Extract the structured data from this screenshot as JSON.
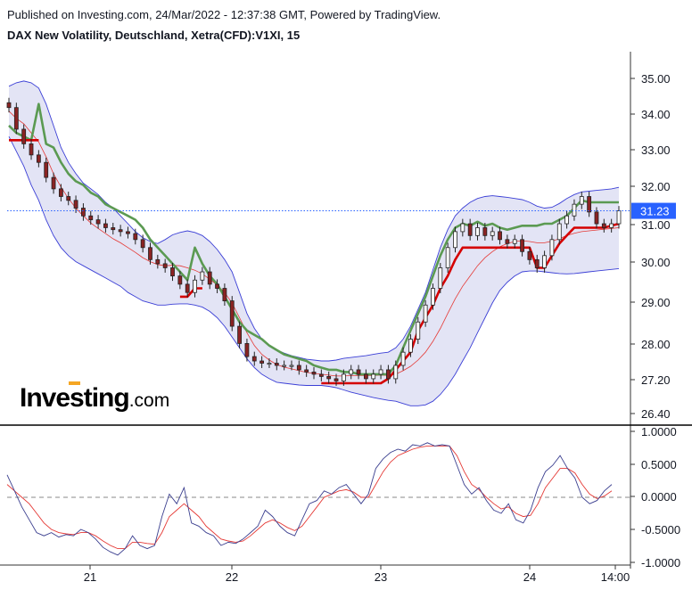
{
  "header": {
    "published": "Published on Investing.com, 24/Mar/2022 - 12:37:38 GMT, Powered by TradingView.",
    "symbol": "DAX New Volatility, Deutschland, Xetra(CFD):V1XI, 15"
  },
  "brand": {
    "name": "Investing",
    "suffix": ".com"
  },
  "colors": {
    "candle_up": "#ffffff",
    "candle_down": "#8b2323",
    "candle_outline": "#222222",
    "band_fill": "#e3e4f5",
    "band_line": "#3b3fd6",
    "basis_line": "#e53935",
    "green_line": "#5b9a52",
    "red_line": "#d50000",
    "price_line": "#2962ff",
    "osc_main": "#3b3f8f",
    "osc_signal": "#e53935"
  },
  "chart_data": [
    {
      "type": "candlestick",
      "title": "DAX New Volatility, Deutschland, Xetra(CFD):V1XI, 15",
      "y_scale": "log",
      "ylim": [
        26.2,
        35.6
      ],
      "y_ticks": [
        "35.00",
        "34.00",
        "33.00",
        "32.00",
        "31.00",
        "30.00",
        "29.00",
        "28.00",
        "27.20",
        "26.40"
      ],
      "x_ticks": [
        "21",
        "22",
        "23",
        "24",
        "14:00"
      ],
      "last_price": "31.23",
      "close": [
        34.0,
        33.4,
        33.0,
        32.7,
        32.5,
        32.1,
        31.8,
        31.6,
        31.5,
        31.3,
        31.1,
        31.0,
        30.9,
        30.8,
        30.75,
        30.7,
        30.65,
        30.5,
        30.3,
        30.0,
        29.9,
        29.8,
        29.6,
        29.4,
        29.2,
        29.5,
        29.7,
        29.4,
        29.3,
        29.0,
        28.4,
        28.0,
        27.7,
        27.6,
        27.55,
        27.55,
        27.5,
        27.5,
        27.5,
        27.4,
        27.35,
        27.3,
        27.25,
        27.2,
        27.15,
        27.3,
        27.4,
        27.3,
        27.2,
        27.3,
        27.4,
        27.2,
        27.5,
        27.8,
        28.1,
        28.5,
        28.9,
        29.3,
        29.8,
        30.3,
        30.7,
        30.9,
        30.6,
        30.8,
        30.6,
        30.7,
        30.5,
        30.4,
        30.5,
        30.2,
        30.0,
        29.8,
        30.1,
        30.5,
        30.9,
        31.1,
        31.4,
        31.6,
        31.2,
        30.9,
        30.8,
        30.9,
        31.23
      ],
      "series": [
        {
          "name": "",
          "role": "bollinger_upper",
          "values": [
            34.6,
            34.7,
            34.75,
            34.7,
            34.55,
            34.1,
            33.5,
            32.9,
            32.5,
            32.2,
            31.95,
            31.8,
            31.65,
            31.45,
            31.3,
            31.1,
            30.9,
            30.7,
            30.55,
            30.45,
            30.4,
            30.5,
            30.62,
            30.68,
            30.72,
            30.68,
            30.6,
            30.45,
            30.25,
            30.0,
            29.7,
            29.2,
            28.7,
            28.35,
            28.1,
            27.95,
            27.85,
            27.78,
            27.72,
            27.68,
            27.64,
            27.62,
            27.6,
            27.6,
            27.62,
            27.66,
            27.68,
            27.7,
            27.72,
            27.75,
            27.78,
            27.8,
            27.9,
            28.1,
            28.4,
            28.8,
            29.2,
            29.75,
            30.3,
            30.75,
            31.1,
            31.3,
            31.45,
            31.55,
            31.6,
            31.62,
            31.6,
            31.58,
            31.55,
            31.52,
            31.45,
            31.35,
            31.3,
            31.32,
            31.42,
            31.55,
            31.65,
            31.72,
            31.74,
            31.76,
            31.78,
            31.8,
            31.84
          ]
        },
        {
          "name": "",
          "role": "bollinger_lower",
          "values": [
            33.2,
            32.8,
            32.4,
            31.9,
            31.5,
            31.0,
            30.6,
            30.3,
            30.1,
            29.95,
            29.85,
            29.75,
            29.65,
            29.55,
            29.45,
            29.35,
            29.2,
            29.1,
            29.0,
            28.95,
            28.9,
            28.9,
            28.92,
            28.93,
            28.93,
            28.9,
            28.85,
            28.75,
            28.6,
            28.4,
            28.15,
            27.9,
            27.65,
            27.45,
            27.3,
            27.2,
            27.12,
            27.1,
            27.08,
            27.06,
            27.05,
            27.05,
            27.05,
            27.03,
            27.0,
            26.95,
            26.9,
            26.86,
            26.82,
            26.78,
            26.75,
            26.72,
            26.7,
            26.65,
            26.6,
            26.6,
            26.62,
            26.7,
            26.85,
            27.05,
            27.3,
            27.6,
            27.9,
            28.25,
            28.6,
            28.95,
            29.25,
            29.45,
            29.6,
            29.7,
            29.72,
            29.72,
            29.7,
            29.68,
            29.66,
            29.65,
            29.66,
            29.68,
            29.7,
            29.72,
            29.74,
            29.76,
            29.78
          ]
        },
        {
          "name": "",
          "role": "bollinger_basis",
          "values": [
            33.9,
            33.7,
            33.55,
            33.3,
            33.05,
            32.65,
            32.2,
            31.85,
            31.55,
            31.3,
            31.1,
            30.92,
            30.78,
            30.65,
            30.52,
            30.42,
            30.3,
            30.18,
            30.05,
            29.95,
            29.88,
            29.85,
            29.86,
            29.85,
            29.8,
            29.74,
            29.65,
            29.52,
            29.38,
            29.2,
            28.95,
            28.6,
            28.25,
            27.95,
            27.75,
            27.62,
            27.52,
            27.46,
            27.42,
            27.38,
            27.34,
            27.32,
            27.3,
            27.28,
            27.26,
            27.26,
            27.27,
            27.27,
            27.27,
            27.27,
            27.28,
            27.27,
            27.3,
            27.38,
            27.48,
            27.62,
            27.8,
            28.05,
            28.35,
            28.7,
            29.05,
            29.35,
            29.6,
            29.85,
            30.05,
            30.2,
            30.32,
            30.4,
            30.45,
            30.47,
            30.45,
            30.42,
            30.42,
            30.46,
            30.52,
            30.6,
            30.66,
            30.7,
            30.72,
            30.74,
            30.76,
            30.78,
            30.8
          ]
        },
        {
          "name": "",
          "role": "green_trail",
          "values": [
            33.5,
            33.3,
            33.2,
            33.1,
            34.1,
            33.0,
            32.9,
            32.5,
            32.2,
            32.0,
            31.9,
            31.7,
            31.6,
            31.4,
            31.3,
            31.2,
            31.1,
            31.0,
            30.8,
            30.5,
            30.3,
            30.1,
            29.9,
            29.7,
            29.5,
            30.3,
            29.9,
            29.6,
            29.4,
            29.1,
            28.8,
            28.5,
            28.3,
            28.2,
            28.1,
            27.95,
            27.85,
            27.75,
            27.7,
            27.65,
            27.6,
            27.5,
            27.45,
            27.4,
            27.4,
            27.35,
            27.35,
            27.3,
            27.3,
            27.3,
            27.3,
            27.3,
            27.5,
            27.9,
            28.3,
            28.7,
            29.1,
            29.6,
            30.1,
            30.5,
            30.8,
            30.9,
            30.85,
            30.95,
            30.85,
            30.9,
            30.8,
            30.75,
            30.8,
            30.85,
            30.85,
            30.85,
            30.9,
            30.9,
            31.0,
            31.1,
            31.3,
            31.5,
            31.45,
            31.45,
            31.45,
            31.45,
            31.45
          ]
        },
        {
          "name": "",
          "role": "red_trail",
          "values": [
            33.1,
            33.1,
            33.1,
            33.1,
            33.1,
            null,
            null,
            null,
            null,
            null,
            null,
            null,
            null,
            null,
            null,
            null,
            null,
            null,
            null,
            null,
            null,
            null,
            null,
            29.1,
            29.1,
            29.3,
            29.3,
            null,
            null,
            null,
            null,
            null,
            null,
            null,
            null,
            null,
            null,
            null,
            null,
            null,
            null,
            null,
            27.1,
            27.1,
            27.1,
            27.1,
            27.1,
            27.1,
            27.1,
            27.1,
            27.1,
            27.2,
            27.4,
            27.6,
            27.8,
            28.3,
            28.6,
            28.9,
            29.3,
            29.6,
            30.0,
            30.3,
            30.3,
            30.3,
            30.3,
            30.3,
            30.3,
            30.3,
            30.3,
            30.3,
            30.3,
            29.8,
            29.8,
            30.1,
            30.4,
            30.6,
            30.8,
            30.8,
            30.8,
            30.8,
            30.8,
            30.85,
            30.9
          ]
        }
      ]
    },
    {
      "type": "line",
      "ylim": [
        -1.0,
        1.0
      ],
      "y_ticks": [
        "1.0000",
        "0.5000",
        "0.0000",
        "-0.5000",
        "-1.0000"
      ],
      "series": [
        {
          "name": "",
          "role": "oscillator",
          "values": [
            0.35,
            0.1,
            -0.15,
            -0.35,
            -0.55,
            -0.6,
            -0.55,
            -0.62,
            -0.58,
            -0.6,
            -0.5,
            -0.55,
            -0.65,
            -0.78,
            -0.85,
            -0.9,
            -0.8,
            -0.6,
            -0.75,
            -0.8,
            -0.75,
            -0.3,
            0.05,
            -0.1,
            0.15,
            -0.4,
            -0.45,
            -0.55,
            -0.6,
            -0.75,
            -0.7,
            -0.72,
            -0.65,
            -0.55,
            -0.45,
            -0.2,
            -0.3,
            -0.45,
            -0.55,
            -0.6,
            -0.35,
            -0.1,
            -0.05,
            0.1,
            0.05,
            0.15,
            0.2,
            0.05,
            -0.1,
            0.05,
            0.45,
            0.6,
            0.7,
            0.75,
            0.72,
            0.82,
            0.8,
            0.85,
            0.8,
            0.82,
            0.8,
            0.5,
            0.2,
            0.05,
            0.15,
            -0.05,
            -0.2,
            -0.25,
            -0.1,
            -0.35,
            -0.4,
            -0.2,
            0.15,
            0.4,
            0.5,
            0.65,
            0.45,
            0.3,
            0.0,
            -0.1,
            -0.05,
            0.1,
            0.2
          ]
        },
        {
          "name": "",
          "role": "signal",
          "values": [
            0.2,
            0.1,
            0.0,
            -0.1,
            -0.25,
            -0.4,
            -0.5,
            -0.55,
            -0.57,
            -0.58,
            -0.55,
            -0.55,
            -0.6,
            -0.68,
            -0.75,
            -0.8,
            -0.8,
            -0.7,
            -0.7,
            -0.72,
            -0.73,
            -0.55,
            -0.3,
            -0.2,
            -0.1,
            -0.2,
            -0.3,
            -0.45,
            -0.55,
            -0.65,
            -0.68,
            -0.7,
            -0.68,
            -0.6,
            -0.5,
            -0.4,
            -0.35,
            -0.4,
            -0.47,
            -0.52,
            -0.45,
            -0.3,
            -0.15,
            0.0,
            0.05,
            0.1,
            0.12,
            0.08,
            0.0,
            0.0,
            0.2,
            0.4,
            0.55,
            0.65,
            0.7,
            0.75,
            0.78,
            0.8,
            0.8,
            0.8,
            0.8,
            0.65,
            0.4,
            0.2,
            0.12,
            0.0,
            -0.1,
            -0.18,
            -0.15,
            -0.25,
            -0.3,
            -0.28,
            -0.1,
            0.15,
            0.3,
            0.45,
            0.45,
            0.38,
            0.2,
            0.05,
            -0.02,
            0.02,
            0.1
          ]
        }
      ]
    }
  ]
}
